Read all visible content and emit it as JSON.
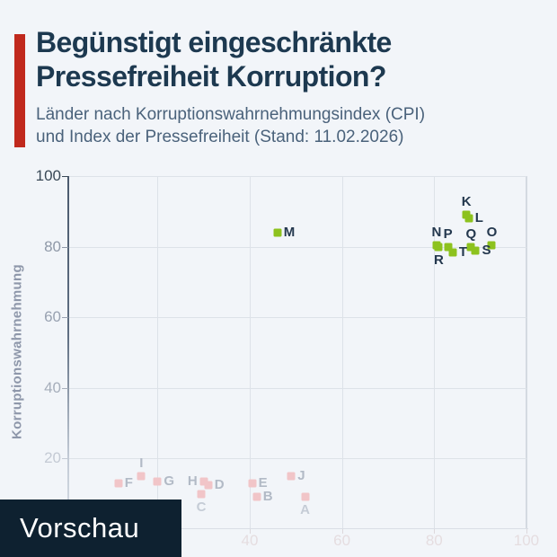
{
  "page": {
    "background": "#f2f5f9",
    "accent_bar_color": "#c0291d"
  },
  "header": {
    "title_line1": "Begünstigt eingeschränkte",
    "title_line2": "Pressefreiheit Korruption?",
    "subtitle_line1": "Länder nach Korruptionswahrnehmungsindex (CPI)",
    "subtitle_line2": "und Index der Pressefreiheit (Stand: 11.02.2026)",
    "title_color": "#1d3950",
    "subtitle_color": "#4a627b"
  },
  "chart_data": {
    "type": "scatter",
    "title": "Begünstigt eingeschränkte Pressefreiheit Korruption?",
    "xlabel": "",
    "ylabel": "Korruptionswahrnehmung",
    "xlim": [
      0,
      101
    ],
    "ylim": [
      0,
      100
    ],
    "grid": true,
    "x_gridlines": [
      20,
      40,
      60,
      80,
      100
    ],
    "y_gridlines": [
      20,
      40,
      60,
      80,
      100
    ],
    "x_tick_labels": [
      {
        "value": 40,
        "label": "40"
      },
      {
        "value": 60,
        "label": "60"
      },
      {
        "value": 80,
        "label": "80"
      },
      {
        "value": 100,
        "label": "100"
      }
    ],
    "x_tick_label_color": "#e5dde0",
    "y_tick_labels": [
      {
        "value": 100,
        "label": "100",
        "color": "#3a4957"
      },
      {
        "value": 80,
        "label": "80",
        "color": "#8f99a8"
      },
      {
        "value": 60,
        "label": "60",
        "color": "#99a2b1"
      },
      {
        "value": 40,
        "label": "40",
        "color": "#a6aebb"
      },
      {
        "value": 20,
        "label": "20",
        "color": "#c4cad4"
      }
    ],
    "series": [
      {
        "name": "hervorgehobene-laender",
        "marker_color": "#8dc21e",
        "label_color": "#24384e",
        "points": [
          {
            "label": "K",
            "x": 87,
            "y": 89,
            "label_pos": "above"
          },
          {
            "label": "L",
            "x": 87.5,
            "y": 88,
            "label_pos": "right"
          },
          {
            "label": "M",
            "x": 46,
            "y": 84,
            "label_pos": "right"
          },
          {
            "label": "N",
            "x": 80.5,
            "y": 80.5,
            "label_pos": "above"
          },
          {
            "label": "O",
            "x": 92.5,
            "y": 80.5,
            "label_pos": "above"
          },
          {
            "label": "P",
            "x": 83,
            "y": 80,
            "label_pos": "above"
          },
          {
            "label": "Q",
            "x": 88,
            "y": 80,
            "label_pos": "above"
          },
          {
            "label": "R",
            "x": 81,
            "y": 80,
            "label_pos": "below"
          },
          {
            "label": "S",
            "x": 89,
            "y": 79,
            "label_pos": "right"
          },
          {
            "label": "T",
            "x": 84,
            "y": 78.5,
            "label_pos": "right"
          }
        ]
      },
      {
        "name": "abgeblendete-laender",
        "marker_color": "#f1c5c8",
        "label_color": "#b2bac6",
        "dim_label_color": "#c5ccd6",
        "points": [
          {
            "label": "A",
            "x": 52,
            "y": 9,
            "label_pos": "below",
            "dim": true
          },
          {
            "label": "B",
            "x": 41.5,
            "y": 9,
            "label_pos": "right"
          },
          {
            "label": "C",
            "x": 29.5,
            "y": 10,
            "label_pos": "below",
            "dim": true
          },
          {
            "label": "D",
            "x": 31,
            "y": 12.5,
            "label_pos": "right"
          },
          {
            "label": "E",
            "x": 40.5,
            "y": 13,
            "label_pos": "right"
          },
          {
            "label": "F",
            "x": 11.5,
            "y": 13,
            "label_pos": "right"
          },
          {
            "label": "G",
            "x": 20,
            "y": 13.5,
            "label_pos": "right"
          },
          {
            "label": "H",
            "x": 30,
            "y": 13.5,
            "label_pos": "left"
          },
          {
            "label": "I",
            "x": 16.5,
            "y": 15,
            "label_pos": "above"
          },
          {
            "label": "J",
            "x": 49,
            "y": 15,
            "label_pos": "right"
          }
        ]
      }
    ]
  },
  "preview": {
    "label": "Vorschau",
    "background": "#0e2130",
    "text_color": "#ffffff"
  }
}
